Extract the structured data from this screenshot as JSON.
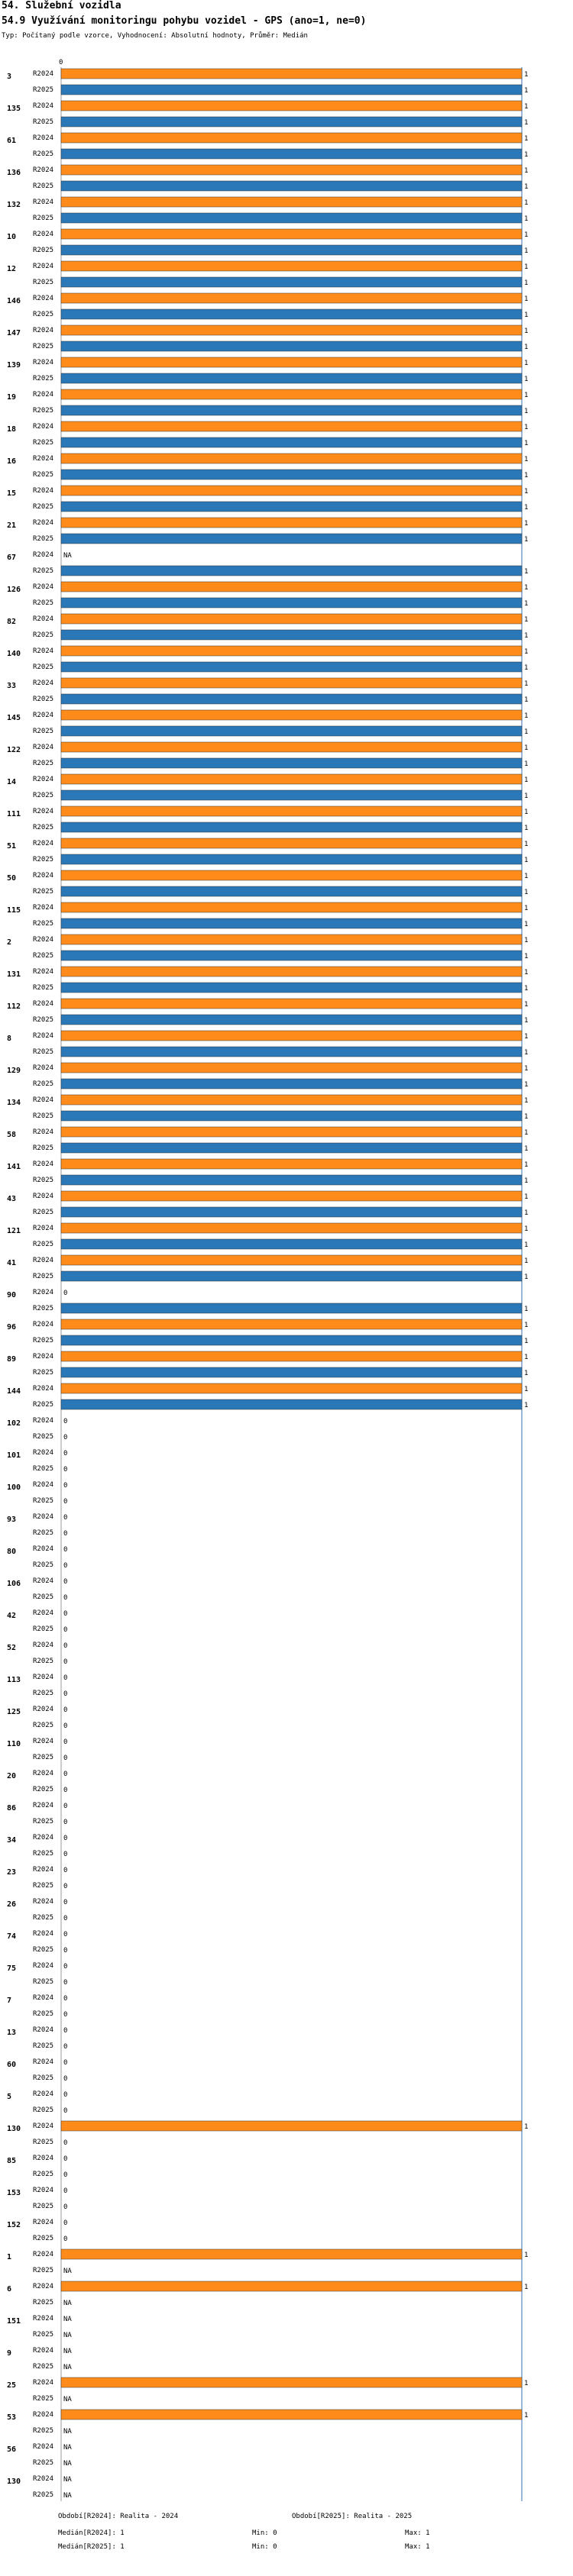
{
  "header": {
    "title": "54. Služební vozidla",
    "question": "54.9 Využívání monitoringu pohybu vozidel - GPS (ano=1, ne=0)",
    "subtitle": "Typ: Počítaný podle vzorce, Vyhodnocení: Absolutní hodnoty, Průměr: Medián"
  },
  "colors": {
    "r2024": "#ff8c1a",
    "r2025": "#2a78b8",
    "axis": "#3a6fb0"
  },
  "chart_data": {
    "type": "bar",
    "orientation": "horizontal",
    "xlim": [
      0,
      1
    ],
    "xticks": [
      "0"
    ],
    "series_names": [
      "R2024",
      "R2025"
    ],
    "categories": [
      "3",
      "135",
      "61",
      "136",
      "132",
      "10",
      "12",
      "146",
      "147",
      "139",
      "19",
      "18",
      "16",
      "15",
      "21",
      "67",
      "126",
      "82",
      "140",
      "33",
      "145",
      "122",
      "14",
      "111",
      "51",
      "50",
      "115",
      "2",
      "131",
      "112",
      "8",
      "129",
      "134",
      "58",
      "141",
      "43",
      "121",
      "41",
      "90",
      "96",
      "89",
      "144",
      "102",
      "101",
      "100",
      "93",
      "80",
      "106",
      "42",
      "52",
      "113",
      "125",
      "110",
      "20",
      "86",
      "34",
      "23",
      "26",
      "74",
      "75",
      "7",
      "13",
      "60",
      "5",
      "130",
      "85",
      "153",
      "152",
      "1",
      "6",
      "151",
      "9",
      "25",
      "53",
      "56",
      "130"
    ],
    "series": [
      {
        "name": "R2024",
        "values": [
          1,
          1,
          1,
          1,
          1,
          1,
          1,
          1,
          1,
          1,
          1,
          1,
          1,
          1,
          1,
          "NA",
          1,
          1,
          1,
          1,
          1,
          1,
          1,
          1,
          1,
          1,
          1,
          1,
          1,
          1,
          1,
          1,
          1,
          1,
          1,
          1,
          1,
          1,
          0,
          1,
          1,
          1,
          0,
          0,
          0,
          0,
          0,
          0,
          0,
          0,
          0,
          0,
          0,
          0,
          0,
          0,
          0,
          0,
          0,
          0,
          0,
          0,
          0,
          0,
          1,
          0,
          0,
          0,
          1,
          1,
          "NA",
          "NA",
          1,
          1,
          "NA",
          "NA"
        ]
      },
      {
        "name": "R2025",
        "values": [
          1,
          1,
          1,
          1,
          1,
          1,
          1,
          1,
          1,
          1,
          1,
          1,
          1,
          1,
          1,
          1,
          1,
          1,
          1,
          1,
          1,
          1,
          1,
          1,
          1,
          1,
          1,
          1,
          1,
          1,
          1,
          1,
          1,
          1,
          1,
          1,
          1,
          1,
          1,
          1,
          1,
          1,
          0,
          0,
          0,
          0,
          0,
          0,
          0,
          0,
          0,
          0,
          0,
          0,
          0,
          0,
          0,
          0,
          0,
          0,
          0,
          0,
          0,
          0,
          0,
          0,
          0,
          0,
          "NA",
          "NA",
          "NA",
          "NA",
          "NA",
          "NA",
          "NA",
          "NA"
        ]
      }
    ]
  },
  "footer": {
    "legend_2024": "Období[R2024]: Realita - 2024",
    "legend_2025": "Období[R2025]: Realita - 2025",
    "median_2024": "Medián[R2024]: 1",
    "median_2025": "Medián[R2025]: 1",
    "min_2024": "Min: 0",
    "min_2025": "Min: 0",
    "max_2024": "Max: 1",
    "max_2025": "Max: 1"
  }
}
